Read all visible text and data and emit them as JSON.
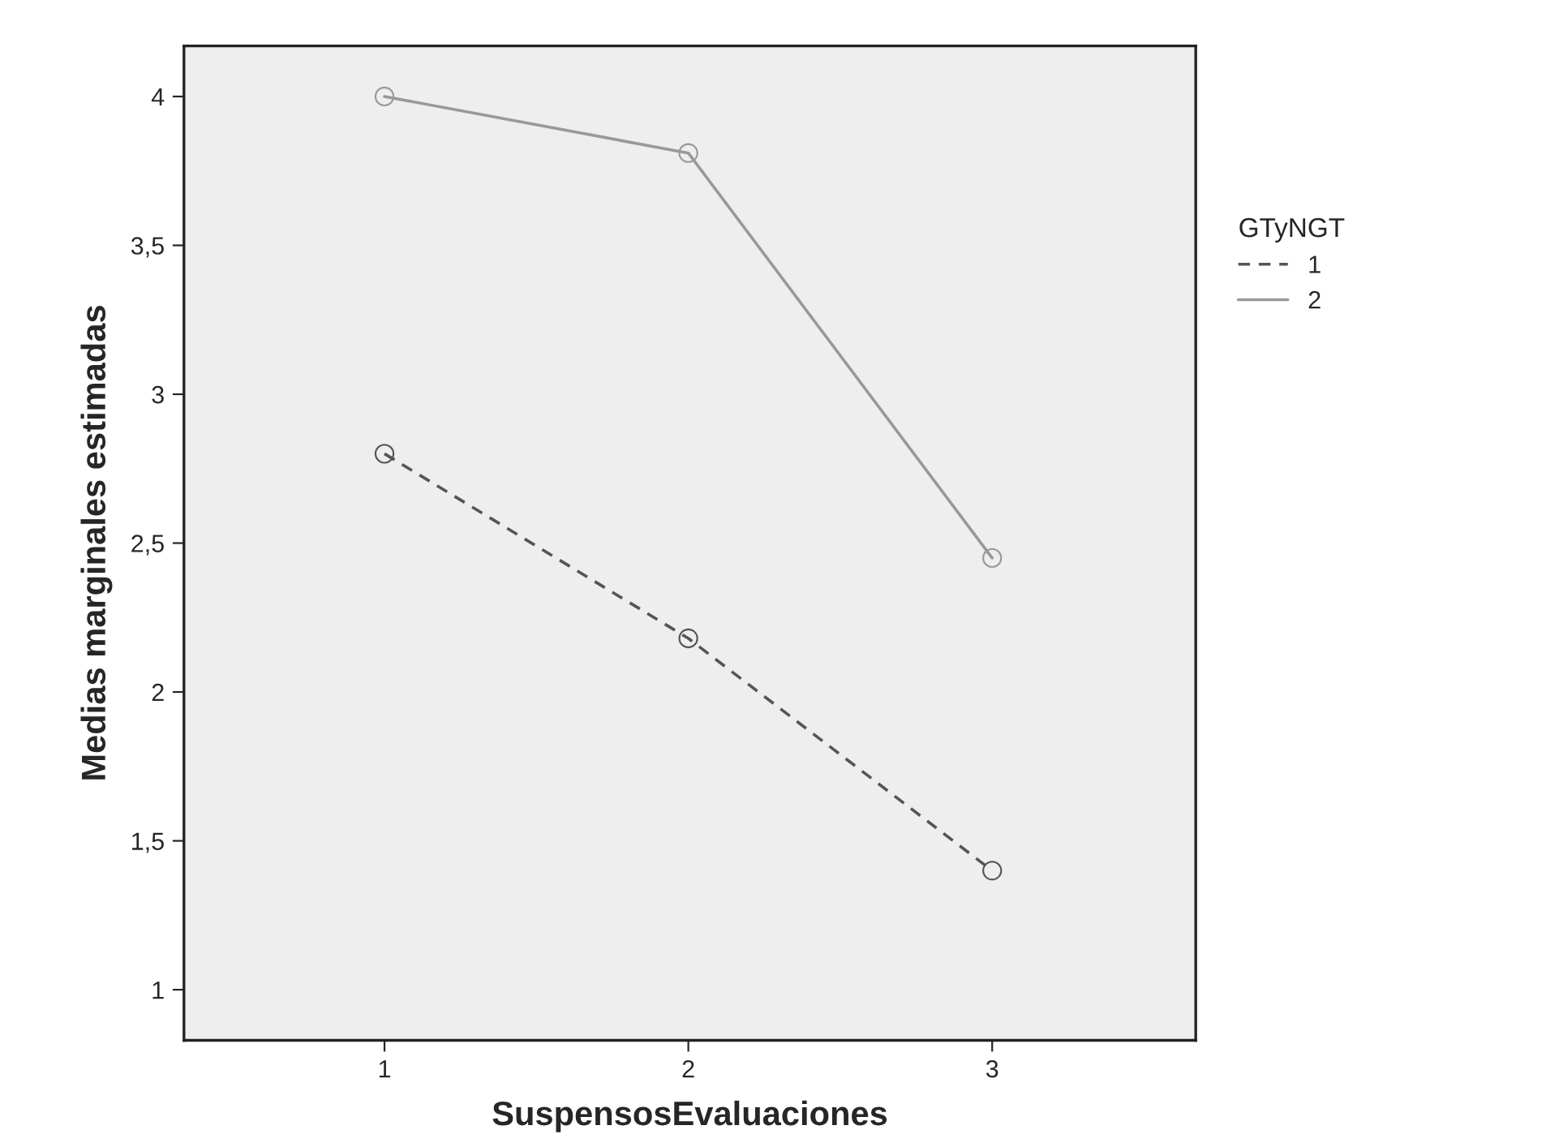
{
  "chart_data": {
    "type": "line",
    "xlabel": "SuspensosEvaluaciones",
    "ylabel": "Medias marginales estimadas",
    "legend_title": "GTyNGT",
    "x": [
      1,
      2,
      3
    ],
    "series": [
      {
        "name": "1",
        "color": "#555555",
        "line_style": "dashed",
        "values": [
          2.8,
          2.18,
          1.4
        ]
      },
      {
        "name": "2",
        "color": "#999999",
        "line_style": "solid",
        "values": [
          4.0,
          3.81,
          2.45
        ]
      }
    ],
    "xlim": [
      0.34,
      3.67
    ],
    "xticks": [
      1,
      2,
      3
    ],
    "ylim": [
      0.83,
      4.17
    ],
    "yticks": [
      {
        "value": 1,
        "label": "1"
      },
      {
        "value": 1.5,
        "label": "1,5"
      },
      {
        "value": 2,
        "label": "2"
      },
      {
        "value": 2.5,
        "label": "2,5"
      },
      {
        "value": 3,
        "label": "3"
      },
      {
        "value": 3.5,
        "label": "3,5"
      },
      {
        "value": 4,
        "label": "4"
      }
    ],
    "marker": "circle",
    "grid": false,
    "legend": "right"
  }
}
